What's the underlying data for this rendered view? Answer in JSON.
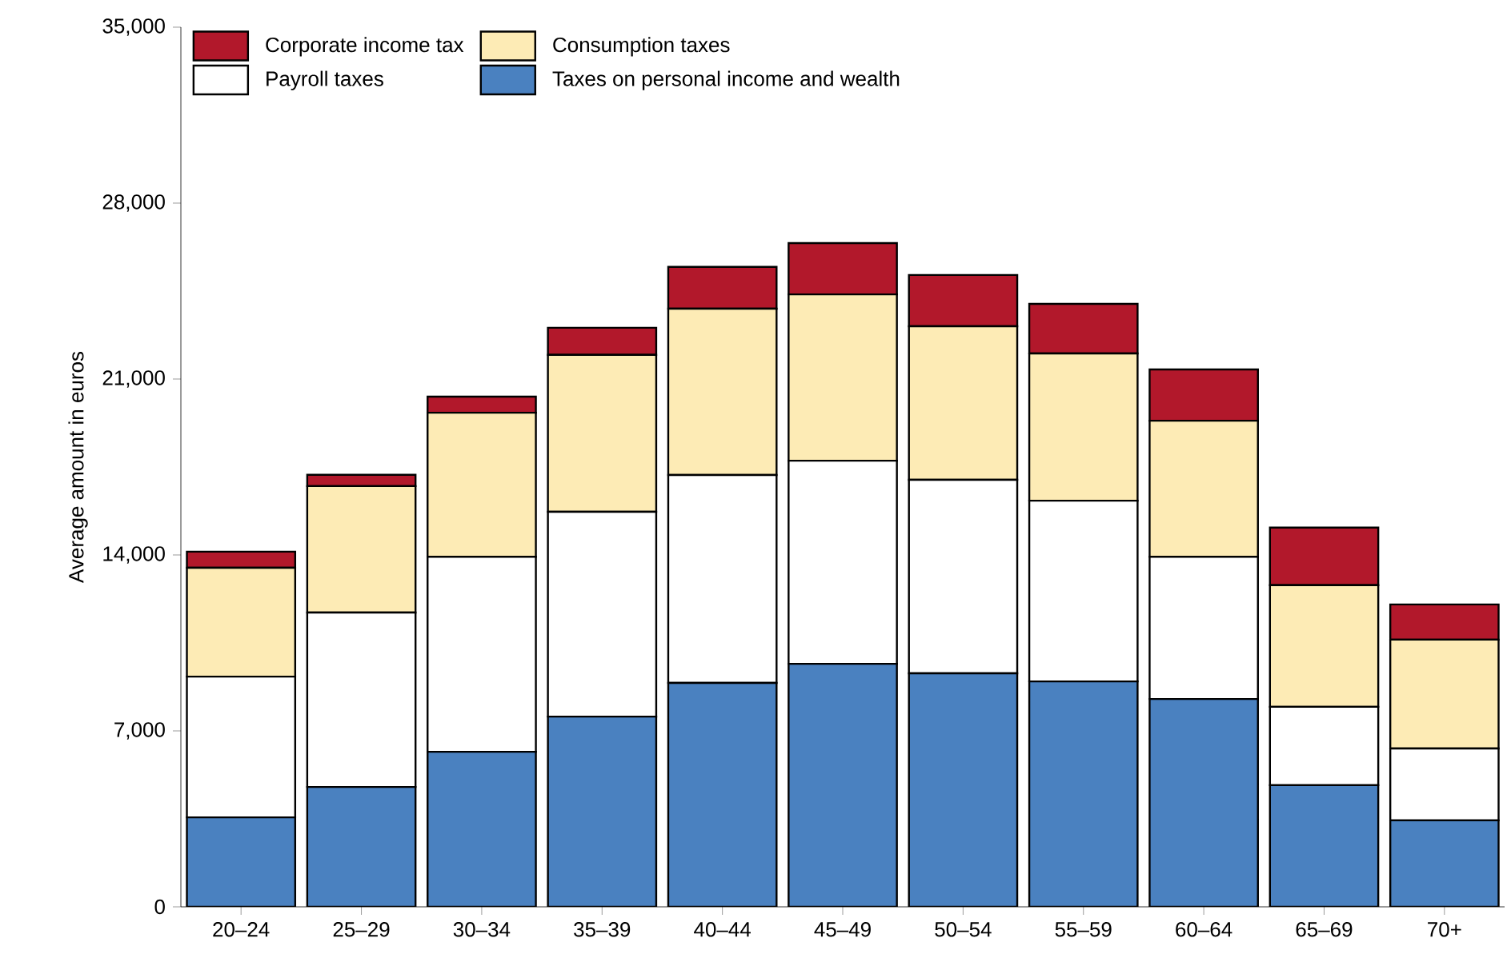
{
  "chart_data": {
    "type": "bar",
    "stacked": true,
    "ylabel": "Average amount in euros",
    "categories": [
      "20–24",
      "25–29",
      "30–34",
      "35–39",
      "40–44",
      "45–49",
      "50–54",
      "55–59",
      "60–64",
      "65–69",
      "70+"
    ],
    "series": [
      {
        "name": "Taxes on personal income and wealth",
        "color": "#4a81c0",
        "values": [
          3560,
          4770,
          6170,
          7570,
          8910,
          9670,
          9290,
          8970,
          8270,
          4840,
          3440
        ]
      },
      {
        "name": "Payroll taxes",
        "color": "#ffffff",
        "values": [
          5600,
          6940,
          7760,
          8150,
          8270,
          8080,
          7700,
          7190,
          5660,
          3120,
          2860
        ]
      },
      {
        "name": "Consumption taxes",
        "color": "#fdebb5",
        "values": [
          4330,
          5030,
          5730,
          6240,
          6620,
          6620,
          6110,
          5860,
          5410,
          4840,
          4330
        ]
      },
      {
        "name": "Corporate income tax",
        "color": "#b2182b",
        "values": [
          640,
          450,
          640,
          1080,
          1660,
          2040,
          2040,
          1970,
          2040,
          2290,
          1400
        ]
      }
    ],
    "ylim": [
      0,
      35000
    ],
    "yticks": [
      {
        "value": 0,
        "label": "0"
      },
      {
        "value": 7000,
        "label": "7,000"
      },
      {
        "value": 14000,
        "label": "14,000"
      },
      {
        "value": 21000,
        "label": "21,000"
      },
      {
        "value": 28000,
        "label": "28,000"
      },
      {
        "value": 35000,
        "label": "35,000"
      }
    ],
    "legend": "top left",
    "grid": false
  }
}
